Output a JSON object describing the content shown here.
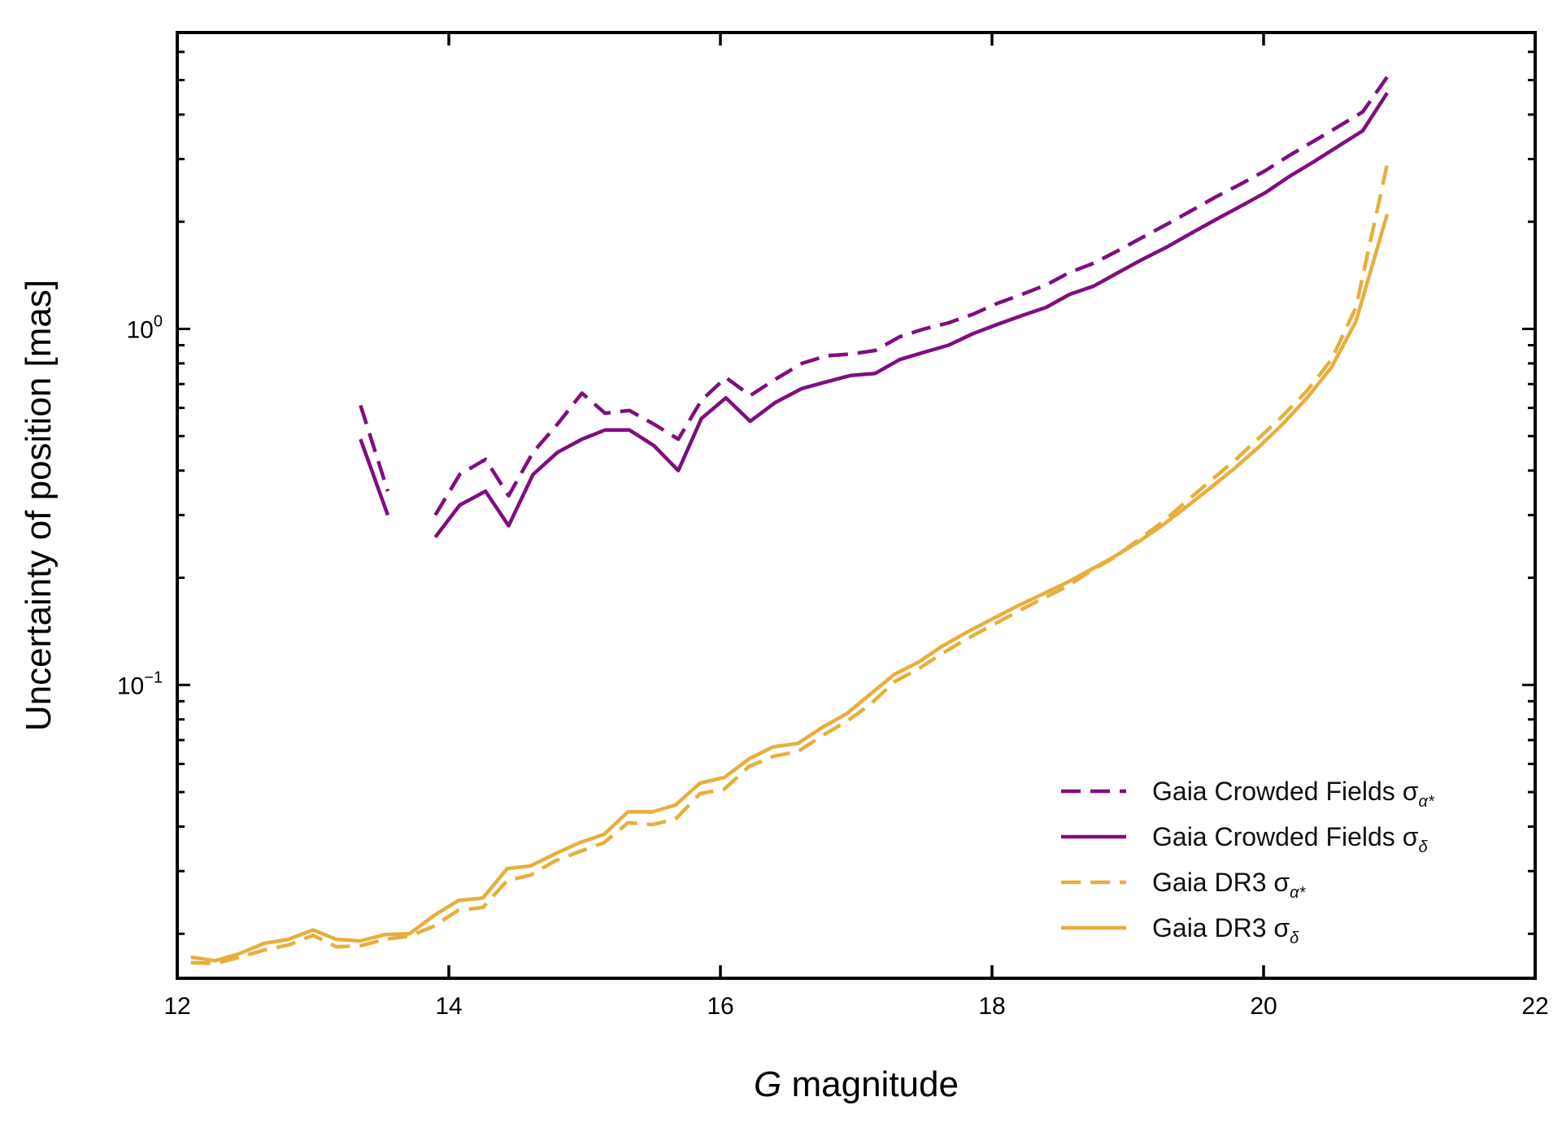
{
  "chart_data": {
    "type": "line",
    "title": "",
    "xlabel_var": "G",
    "xlabel_rest": " magnitude",
    "ylabel": "Uncertainty of position [mas]",
    "xlim": [
      12,
      22
    ],
    "ylim": [
      0.015,
      6.8
    ],
    "yscale": "log",
    "xticks": [
      12,
      14,
      16,
      18,
      20,
      22
    ],
    "xtick_labels": [
      "12",
      "14",
      "16",
      "18",
      "20",
      "22"
    ],
    "yticks_major": [
      {
        "value": 0.1,
        "base": "10",
        "exp": "−1"
      },
      {
        "value": 1,
        "base": "10",
        "exp": "0"
      }
    ],
    "grid": false,
    "legend_position": "lower-right",
    "colors": {
      "crowded": "#7f0e7f",
      "dr3": "#e8ae3c"
    },
    "series": [
      {
        "name_base": "Gaia Crowded Fields σ",
        "name_sub": "α*",
        "color": "#7f0e7f",
        "dash": "dashed",
        "segments": [
          [
            [
              13.35,
              0.61
            ],
            [
              13.55,
              0.35
            ]
          ],
          [
            [
              13.9,
              0.3
            ],
            [
              14.08,
              0.39
            ],
            [
              14.27,
              0.43
            ],
            [
              14.44,
              0.34
            ],
            [
              14.62,
              0.45
            ],
            [
              14.8,
              0.54
            ],
            [
              14.98,
              0.66
            ],
            [
              15.15,
              0.58
            ],
            [
              15.33,
              0.59
            ],
            [
              15.51,
              0.54
            ],
            [
              15.69,
              0.49
            ],
            [
              15.86,
              0.63
            ],
            [
              16.04,
              0.73
            ],
            [
              16.22,
              0.65
            ],
            [
              16.4,
              0.72
            ],
            [
              16.6,
              0.8
            ],
            [
              16.78,
              0.84
            ],
            [
              16.96,
              0.85
            ],
            [
              17.14,
              0.87
            ],
            [
              17.32,
              0.95
            ],
            [
              17.5,
              1.0
            ],
            [
              17.68,
              1.04
            ],
            [
              17.86,
              1.1
            ],
            [
              18.04,
              1.18
            ],
            [
              18.22,
              1.25
            ],
            [
              18.4,
              1.33
            ],
            [
              18.57,
              1.44
            ],
            [
              18.75,
              1.53
            ],
            [
              18.93,
              1.66
            ],
            [
              19.11,
              1.81
            ],
            [
              19.29,
              1.97
            ],
            [
              19.47,
              2.15
            ],
            [
              19.65,
              2.35
            ],
            [
              19.83,
              2.55
            ],
            [
              20.01,
              2.78
            ],
            [
              20.19,
              3.07
            ],
            [
              20.37,
              3.37
            ],
            [
              20.55,
              3.7
            ],
            [
              20.73,
              4.07
            ],
            [
              20.91,
              5.1
            ]
          ]
        ]
      },
      {
        "name_base": "Gaia Crowded Fields σ",
        "name_sub": "δ",
        "color": "#7f0e7f",
        "dash": "solid",
        "segments": [
          [
            [
              13.35,
              0.49
            ],
            [
              13.55,
              0.3
            ]
          ],
          [
            [
              13.9,
              0.26
            ],
            [
              14.08,
              0.32
            ],
            [
              14.27,
              0.35
            ],
            [
              14.44,
              0.28
            ],
            [
              14.62,
              0.39
            ],
            [
              14.8,
              0.45
            ],
            [
              14.98,
              0.49
            ],
            [
              15.15,
              0.52
            ],
            [
              15.33,
              0.52
            ],
            [
              15.51,
              0.47
            ],
            [
              15.69,
              0.4
            ],
            [
              15.86,
              0.56
            ],
            [
              16.04,
              0.64
            ],
            [
              16.22,
              0.55
            ],
            [
              16.4,
              0.62
            ],
            [
              16.6,
              0.68
            ],
            [
              16.78,
              0.71
            ],
            [
              16.96,
              0.74
            ],
            [
              17.14,
              0.75
            ],
            [
              17.32,
              0.82
            ],
            [
              17.5,
              0.86
            ],
            [
              17.68,
              0.9
            ],
            [
              17.86,
              0.97
            ],
            [
              18.04,
              1.03
            ],
            [
              18.22,
              1.09
            ],
            [
              18.4,
              1.15
            ],
            [
              18.57,
              1.25
            ],
            [
              18.75,
              1.32
            ],
            [
              18.93,
              1.44
            ],
            [
              19.11,
              1.57
            ],
            [
              19.29,
              1.7
            ],
            [
              19.47,
              1.86
            ],
            [
              19.65,
              2.03
            ],
            [
              19.83,
              2.21
            ],
            [
              20.01,
              2.41
            ],
            [
              20.19,
              2.68
            ],
            [
              20.37,
              2.95
            ],
            [
              20.55,
              3.26
            ],
            [
              20.73,
              3.6
            ],
            [
              20.91,
              4.6
            ]
          ]
        ]
      },
      {
        "name_base": "Gaia DR3 σ",
        "name_sub": "α*",
        "color": "#e8ae3c",
        "dash": "dashed",
        "segments": [
          [
            [
              12.1,
              0.0166
            ],
            [
              12.28,
              0.0165
            ],
            [
              12.46,
              0.0172
            ],
            [
              12.64,
              0.018
            ],
            [
              12.82,
              0.0186
            ],
            [
              13.0,
              0.0198
            ],
            [
              13.17,
              0.0184
            ],
            [
              13.35,
              0.0185
            ],
            [
              13.53,
              0.0193
            ],
            [
              13.71,
              0.0197
            ],
            [
              13.89,
              0.021
            ],
            [
              14.07,
              0.0233
            ],
            [
              14.25,
              0.0237
            ],
            [
              14.43,
              0.0282
            ],
            [
              14.6,
              0.0292
            ],
            [
              14.78,
              0.032
            ],
            [
              14.96,
              0.034
            ],
            [
              15.14,
              0.036
            ],
            [
              15.32,
              0.041
            ],
            [
              15.5,
              0.0405
            ],
            [
              15.67,
              0.042
            ],
            [
              15.85,
              0.0495
            ],
            [
              16.03,
              0.051
            ],
            [
              16.21,
              0.059
            ],
            [
              16.39,
              0.063
            ],
            [
              16.57,
              0.065
            ],
            [
              16.75,
              0.072
            ],
            [
              16.93,
              0.079
            ],
            [
              17.1,
              0.088
            ],
            [
              17.28,
              0.102
            ],
            [
              17.46,
              0.111
            ],
            [
              17.64,
              0.123
            ],
            [
              17.82,
              0.135
            ],
            [
              18.0,
              0.147
            ],
            [
              18.18,
              0.16
            ],
            [
              18.36,
              0.174
            ],
            [
              18.54,
              0.188
            ],
            [
              18.71,
              0.207
            ],
            [
              18.89,
              0.227
            ],
            [
              19.07,
              0.254
            ],
            [
              19.25,
              0.286
            ],
            [
              19.43,
              0.327
            ],
            [
              19.61,
              0.375
            ],
            [
              19.79,
              0.428
            ],
            [
              19.96,
              0.491
            ],
            [
              20.14,
              0.57
            ],
            [
              20.32,
              0.67
            ],
            [
              20.5,
              0.82
            ],
            [
              20.68,
              1.15
            ],
            [
              20.91,
              2.9
            ]
          ]
        ]
      },
      {
        "name_base": "Gaia DR3 σ",
        "name_sub": "δ",
        "color": "#e8ae3c",
        "dash": "solid",
        "segments": [
          [
            [
              12.1,
              0.0172
            ],
            [
              12.28,
              0.0168
            ],
            [
              12.46,
              0.0176
            ],
            [
              12.64,
              0.0188
            ],
            [
              12.82,
              0.0193
            ],
            [
              13.0,
              0.0205
            ],
            [
              13.17,
              0.0193
            ],
            [
              13.35,
              0.0191
            ],
            [
              13.53,
              0.0199
            ],
            [
              13.71,
              0.02
            ],
            [
              13.89,
              0.0225
            ],
            [
              14.07,
              0.0248
            ],
            [
              14.25,
              0.0252
            ],
            [
              14.43,
              0.0305
            ],
            [
              14.6,
              0.031
            ],
            [
              14.78,
              0.0335
            ],
            [
              14.96,
              0.036
            ],
            [
              15.14,
              0.038
            ],
            [
              15.32,
              0.044
            ],
            [
              15.5,
              0.044
            ],
            [
              15.67,
              0.046
            ],
            [
              15.85,
              0.053
            ],
            [
              16.03,
              0.055
            ],
            [
              16.21,
              0.062
            ],
            [
              16.39,
              0.067
            ],
            [
              16.57,
              0.0685
            ],
            [
              16.75,
              0.076
            ],
            [
              16.93,
              0.083
            ],
            [
              17.1,
              0.094
            ],
            [
              17.28,
              0.107
            ],
            [
              17.46,
              0.116
            ],
            [
              17.64,
              0.129
            ],
            [
              17.82,
              0.141
            ],
            [
              18.0,
              0.153
            ],
            [
              18.18,
              0.166
            ],
            [
              18.36,
              0.179
            ],
            [
              18.54,
              0.193
            ],
            [
              18.71,
              0.209
            ],
            [
              18.89,
              0.228
            ],
            [
              19.07,
              0.251
            ],
            [
              19.25,
              0.28
            ],
            [
              19.43,
              0.316
            ],
            [
              19.61,
              0.358
            ],
            [
              19.79,
              0.407
            ],
            [
              19.96,
              0.464
            ],
            [
              20.14,
              0.54
            ],
            [
              20.32,
              0.64
            ],
            [
              20.5,
              0.78
            ],
            [
              20.68,
              1.05
            ],
            [
              20.91,
              2.1
            ]
          ]
        ]
      }
    ]
  }
}
